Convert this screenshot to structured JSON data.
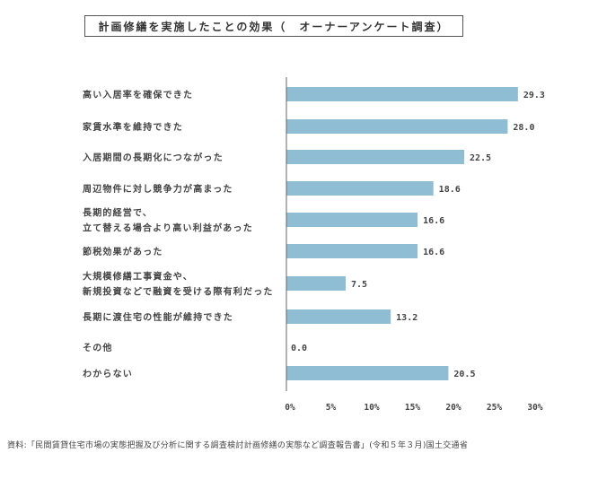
{
  "chart_data": {
    "type": "bar",
    "orientation": "horizontal",
    "title": "計画修繕を実施したことの効果（　オーナーアンケート調査）",
    "categories": [
      [
        "高い入居率を確保できた"
      ],
      [
        "家賃水準を維持できた"
      ],
      [
        "入居期間の長期化につながった"
      ],
      [
        "周辺物件に対し競争力が高まった"
      ],
      [
        "長期的経営で、",
        "立て替える場合より高い利益があった"
      ],
      [
        "節税効果があった"
      ],
      [
        "大規模修繕工事資金や、",
        "新規投資などで融資を受ける際有利だった"
      ],
      [
        "長期に渡住宅の性能が維持できた"
      ],
      [
        "その他"
      ],
      [
        "わからない"
      ]
    ],
    "values": [
      29.3,
      28.0,
      22.5,
      18.6,
      16.6,
      16.6,
      7.5,
      13.2,
      0.0,
      20.5
    ],
    "value_labels": [
      "29.3",
      "28.0",
      "22.5",
      "18.6",
      "16.6",
      "16.6",
      "7.5",
      "13.2",
      "0.0",
      "20.5"
    ],
    "xlim": [
      0,
      30
    ],
    "xticks": [
      0,
      5,
      10,
      15,
      20,
      25,
      30
    ],
    "xtick_labels": [
      "0%",
      "5%",
      "10%",
      "15%",
      "20%",
      "25%",
      "30%"
    ],
    "grid": false,
    "bar_color": "#8fbdd3"
  },
  "source": "資料:「民間賃貸住宅市場の実態把握及び分析に関する調査検討計画修繕の実態など調査報告書」(令和５年３月)国土交通省"
}
